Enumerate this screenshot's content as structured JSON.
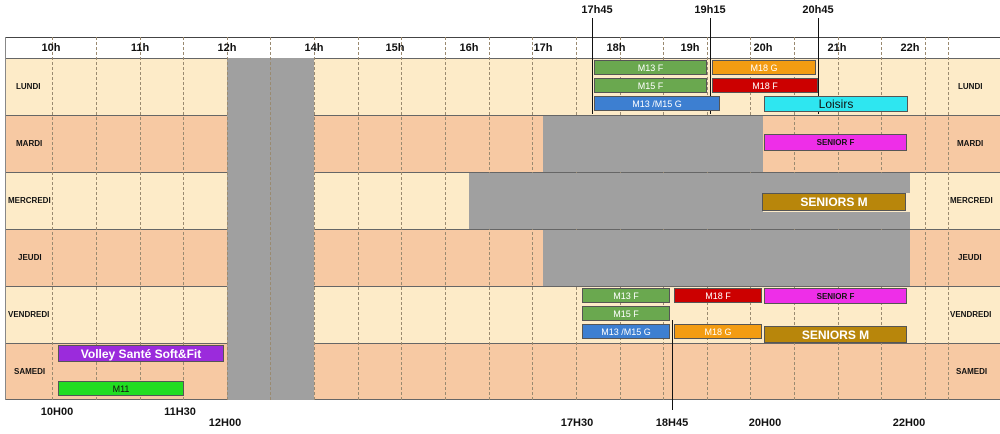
{
  "header_hours": [
    "10h",
    "11h",
    "12h",
    "14h",
    "15h",
    "16h",
    "17h",
    "18h",
    "19h",
    "20h",
    "21h",
    "22h"
  ],
  "top_markers": [
    "17h45",
    "19h15",
    "20h45"
  ],
  "bottom_markers": [
    "10H00",
    "11H30",
    "12H00",
    "17H30",
    "18H45",
    "20H00",
    "22H00"
  ],
  "days": [
    {
      "left": "LUNDI",
      "right": "LUNDI",
      "color": "#fdebc8"
    },
    {
      "left": "MARDI",
      "right": "MARDI",
      "color": "#f7c9a3"
    },
    {
      "left": "MERCREDI",
      "right": "MERCREDI",
      "color": "#fdebc8"
    },
    {
      "left": "JEUDI",
      "right": "JEUDI",
      "color": "#f7c9a3"
    },
    {
      "left": "VENDREDI",
      "right": "VENDREDI",
      "color": "#fdebc8"
    },
    {
      "left": "SAMEDI",
      "right": "SAMEDI",
      "color": "#f7c9a3"
    }
  ],
  "colors": {
    "green": "#6aa84f",
    "orange": "#f39c12",
    "red": "#cc0000",
    "blue": "#3d7fd1",
    "cyan": "#2ee6f0",
    "magenta": "#ee2ee8",
    "gold": "#b8860b",
    "purple": "#9b2bdc",
    "lightgreen": "#22dd22",
    "gray": "#a0a0a0"
  },
  "sessions": {
    "lundi_m13f": "M13  F",
    "lundi_m15f": "M15  F",
    "lundi_m1315g": "M13 /M15  G",
    "lundi_m18g": "M18 G",
    "lundi_m18f": "M18 F",
    "lundi_loisirs": "Loisirs",
    "mardi_senior_f": "SENIOR F",
    "mercredi_seniors_m": "SENIORS M",
    "vendredi_m13f": "M13  F",
    "vendredi_m15f": "M15  F",
    "vendredi_m1315g": "M13 /M15  G",
    "vendredi_m18f": "M18 F",
    "vendredi_m18g": "M18 G",
    "vendredi_senior_f": "SENIOR F",
    "vendredi_seniors_m": "SENIORS M",
    "samedi_volley": "Volley Santé Soft&Fit",
    "samedi_m11": "M11"
  }
}
